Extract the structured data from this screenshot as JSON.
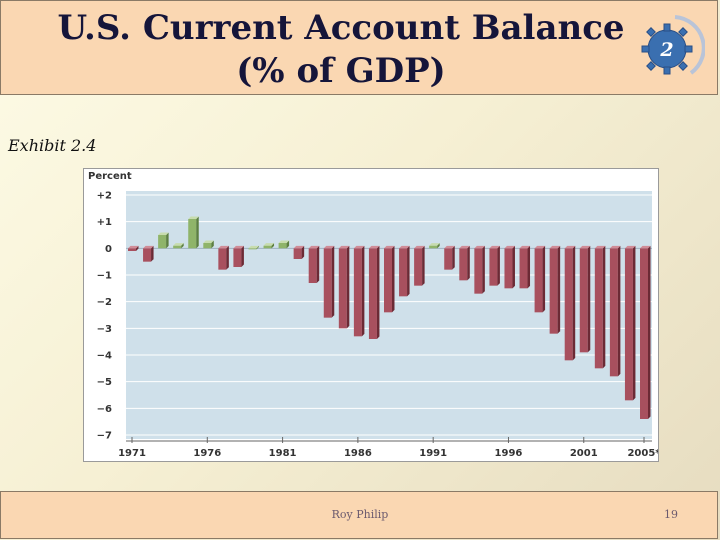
{
  "slide": {
    "title_line1": "U.S. Current Account Balance",
    "title_line2": "(% of GDP)",
    "badge_number": "2",
    "exhibit_label": "Exhibit 2.4",
    "footer_author": "Roy Philip",
    "footer_page": "19"
  },
  "colors": {
    "positive_bar": "#8fb46a",
    "negative_bar": "#a8505e",
    "plot_background": "#cfe0ea",
    "gridline": "#ffffff",
    "title_bar": "#fad7b2"
  },
  "chart_data": {
    "type": "bar",
    "ylabel": "Percent",
    "ylim": [
      -7,
      2
    ],
    "yticks": [
      2,
      1,
      0,
      -1,
      -2,
      -3,
      -4,
      -5,
      -6,
      -7
    ],
    "ytick_labels": [
      "+2",
      "+1",
      "0",
      "−1",
      "−2",
      "−3",
      "−4",
      "−5",
      "−6",
      "−7"
    ],
    "xticks": [
      "1971",
      "1976",
      "1981",
      "1986",
      "1991",
      "1996",
      "2001",
      "2005*"
    ],
    "grid": true,
    "x": [
      1971,
      1972,
      1973,
      1974,
      1975,
      1976,
      1977,
      1978,
      1979,
      1980,
      1981,
      1982,
      1983,
      1984,
      1985,
      1986,
      1987,
      1988,
      1989,
      1990,
      1991,
      1992,
      1993,
      1994,
      1995,
      1996,
      1997,
      1998,
      1999,
      2000,
      2001,
      2002,
      2003,
      2004,
      2005
    ],
    "values": [
      -0.1,
      -0.5,
      0.5,
      0.1,
      1.1,
      0.2,
      -0.8,
      -0.7,
      0.0,
      0.1,
      0.2,
      -0.4,
      -1.3,
      -2.6,
      -3.0,
      -3.3,
      -3.4,
      -2.4,
      -1.8,
      -1.4,
      0.1,
      -0.8,
      -1.2,
      -1.7,
      -1.4,
      -1.5,
      -1.5,
      -2.4,
      -3.2,
      -4.2,
      -3.9,
      -4.5,
      -4.8,
      -5.7,
      -6.4
    ]
  }
}
